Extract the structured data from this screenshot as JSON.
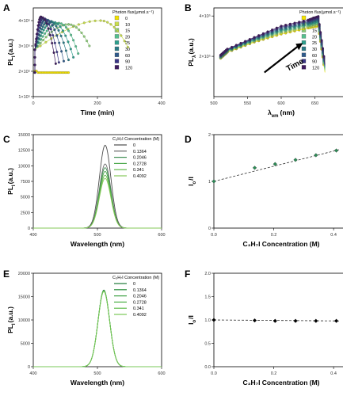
{
  "panels": [
    {
      "letter": "A",
      "chart_data": {
        "type": "scatter",
        "xlabel": "Time (min)",
        "ylabel": "PL",
        "ylabel_sub": "I",
        "ylabel_unit": "(a.u.)",
        "xlim": [
          0,
          400
        ],
        "ylim": [
          1000,
          4500
        ],
        "x_ticks": [
          0,
          200,
          400
        ],
        "y_ticks": [
          {
            "v": 1000,
            "t": "1×10⁵"
          },
          {
            "v": 2000,
            "t": "2×10⁵"
          },
          {
            "v": 3000,
            "t": "3×10⁵"
          },
          {
            "v": 4000,
            "t": "4×10⁵"
          }
        ],
        "legend_title": "Photon flux(μmol.s⁻¹)",
        "legend_placement": "top-right",
        "series": [
          {
            "name": "0",
            "color": "#f2e100",
            "x": [
              5,
              110
            ],
            "y": [
              1950,
              1950
            ],
            "shape": "flat"
          },
          {
            "name": "10",
            "color": "#c8dd4a",
            "x": [
              5,
              210,
              295
            ],
            "y": [
              1950,
              4000,
              2950
            ],
            "shape": "rise"
          },
          {
            "name": "15",
            "color": "#8fd07a",
            "x": [
              5,
              110,
              175
            ],
            "y": [
              1950,
              3850,
              3000
            ],
            "shape": "rise"
          },
          {
            "name": "20",
            "color": "#55bf8e",
            "x": [
              5,
              80,
              140
            ],
            "y": [
              1950,
              3900,
              2700
            ],
            "shape": "rise"
          },
          {
            "name": "25",
            "color": "#2e9e8c",
            "x": [
              5,
              60,
              125
            ],
            "y": [
              1950,
              3950,
              2550
            ],
            "shape": "rise"
          },
          {
            "name": "30",
            "color": "#2a7a86",
            "x": [
              5,
              48,
              110
            ],
            "y": [
              1950,
              4000,
              2450
            ],
            "shape": "rise"
          },
          {
            "name": "60",
            "color": "#2f5a8a",
            "x": [
              5,
              38,
              95
            ],
            "y": [
              1950,
              4050,
              2400
            ],
            "shape": "rise"
          },
          {
            "name": "90",
            "color": "#3a3585",
            "x": [
              5,
              30,
              80
            ],
            "y": [
              1950,
              4100,
              2350
            ],
            "shape": "rise"
          },
          {
            "name": "120",
            "color": "#3d1a5e",
            "x": [
              5,
              24,
              70
            ],
            "y": [
              1950,
              4150,
              2300
            ],
            "shape": "rise"
          }
        ]
      }
    },
    {
      "letter": "B",
      "chart_data": {
        "type": "scatter",
        "xlabel": "λ",
        "xlabel_sub": "em",
        "xlabel_unit": "(nm)",
        "ylabel": "PL",
        "ylabel_sub": "λ",
        "ylabel_unit": "(a.u.)",
        "xlim": [
          500,
          700
        ],
        "ylim": [
          0,
          4400
        ],
        "x_ticks": [
          500,
          550,
          600,
          650,
          700
        ],
        "y_ticks": [
          {
            "v": 2000,
            "t": "2×10⁵"
          },
          {
            "v": 4000,
            "t": "4×10⁵"
          }
        ],
        "legend_title": "Photon flux(μmol.s⁻¹)",
        "legend_placement": "top-right",
        "annotation": "Time",
        "series": [
          {
            "name": "0",
            "color": "#f2e100",
            "x": [
              510,
              520,
              560,
              600,
              640,
              655,
              665
            ],
            "y": [
              1900,
              2200,
              2700,
              3100,
              3400,
              3500,
              1200
            ]
          },
          {
            "name": "10",
            "color": "#c8dd4a",
            "x": [
              510,
              520,
              560,
              600,
              640,
              655,
              665
            ],
            "y": [
              1920,
              2220,
              2730,
              3150,
              3450,
              3560,
              1250
            ]
          },
          {
            "name": "15",
            "color": "#8fd07a",
            "x": [
              510,
              520,
              560,
              600,
              640,
              655,
              665
            ],
            "y": [
              1940,
              2240,
              2760,
              3200,
              3500,
              3620,
              1300
            ]
          },
          {
            "name": "20",
            "color": "#55bf8e",
            "x": [
              510,
              520,
              560,
              600,
              640,
              655,
              665
            ],
            "y": [
              1960,
              2260,
              2790,
              3250,
              3550,
              3680,
              1350
            ]
          },
          {
            "name": "25",
            "color": "#2e9e8c",
            "x": [
              510,
              520,
              560,
              600,
              640,
              655,
              665
            ],
            "y": [
              1980,
              2280,
              2820,
              3300,
              3600,
              3740,
              1400
            ]
          },
          {
            "name": "30",
            "color": "#2a7a86",
            "x": [
              510,
              520,
              560,
              600,
              640,
              655,
              665
            ],
            "y": [
              2000,
              2300,
              2850,
              3350,
              3650,
              3800,
              1450
            ]
          },
          {
            "name": "60",
            "color": "#2f5a8a",
            "x": [
              510,
              520,
              560,
              600,
              640,
              655,
              665
            ],
            "y": [
              2020,
              2320,
              2880,
              3400,
              3700,
              3860,
              1500
            ]
          },
          {
            "name": "90",
            "color": "#3a3585",
            "x": [
              510,
              520,
              560,
              600,
              640,
              655,
              665
            ],
            "y": [
              2040,
              2340,
              2910,
              3450,
              3750,
              3920,
              1550
            ]
          },
          {
            "name": "120",
            "color": "#3d1a5e",
            "x": [
              510,
              520,
              560,
              600,
              640,
              655,
              665
            ],
            "y": [
              2060,
              2360,
              2940,
              3500,
              3800,
              3980,
              1600
            ]
          }
        ]
      }
    },
    {
      "letter": "C",
      "chart_data": {
        "type": "line",
        "xlabel": "Wavelength (nm)",
        "ylabel": "PL",
        "ylabel_sub": "I",
        "ylabel_unit": "(a.u.)",
        "xlim": [
          400,
          600
        ],
        "ylim": [
          0,
          15000
        ],
        "x_ticks": [
          400,
          500,
          600
        ],
        "y_ticks": [
          {
            "v": 0,
            "t": "0"
          },
          {
            "v": 2500,
            "t": "2500"
          },
          {
            "v": 5000,
            "t": "5000"
          },
          {
            "v": 7500,
            "t": "7500"
          },
          {
            "v": 10000,
            "t": "10000"
          },
          {
            "v": 12500,
            "t": "12500"
          },
          {
            "v": 15000,
            "t": "15000"
          }
        ],
        "legend_title": "C₃H₇I Concentration (M)",
        "legend_placement": "top-right",
        "peak_center": 512,
        "peak_sigma": 9,
        "series": [
          {
            "name": "0",
            "color": "#4d4d4d",
            "peak": 13300
          },
          {
            "name": "0.1364",
            "color": "#6b6b6b",
            "peak": 10300
          },
          {
            "name": "0.2046",
            "color": "#3e8f52",
            "peak": 9700
          },
          {
            "name": "0.2728",
            "color": "#4aa84a",
            "peak": 9100
          },
          {
            "name": "0.341",
            "color": "#63b94c",
            "peak": 8500
          },
          {
            "name": "0.4092",
            "color": "#86c85a",
            "peak": 8000
          }
        ]
      }
    },
    {
      "letter": "D",
      "chart_data": {
        "type": "scatter",
        "xlabel": "C₃H₇I Concentration (M)",
        "ylabel": "I",
        "ylabel_sub": "o",
        "ylabel_unit": "/I",
        "xlim": [
          0,
          0.45
        ],
        "ylim": [
          0,
          2
        ],
        "x_ticks": [
          0.0,
          0.2,
          0.4
        ],
        "x_tick_labels": [
          "0.0",
          "0.2",
          "0.4"
        ],
        "y_ticks": [
          {
            "v": 0,
            "t": "0"
          },
          {
            "v": 1,
            "t": "1"
          },
          {
            "v": 2,
            "t": "2"
          }
        ],
        "marker_color": "#2e8b57",
        "fit": {
          "intercept": 1.0,
          "slope": 1.62
        },
        "x": [
          0,
          0.1364,
          0.2046,
          0.2728,
          0.341,
          0.4092
        ],
        "y": [
          1.0,
          1.29,
          1.37,
          1.46,
          1.56,
          1.66
        ]
      }
    },
    {
      "letter": "E",
      "chart_data": {
        "type": "line",
        "xlabel": "Wavelength (nm)",
        "ylabel": "PL",
        "ylabel_sub": "I",
        "ylabel_unit": "(a.u.)",
        "xlim": [
          400,
          600
        ],
        "ylim": [
          0,
          20000
        ],
        "x_ticks": [
          400,
          500,
          600
        ],
        "y_ticks": [
          {
            "v": 0,
            "t": "0"
          },
          {
            "v": 5000,
            "t": "5000"
          },
          {
            "v": 10000,
            "t": "10000"
          },
          {
            "v": 15000,
            "t": "15000"
          },
          {
            "v": 20000,
            "t": "20000"
          }
        ],
        "legend_title": "C₃H₇I Concentration (M)",
        "legend_placement": "top-right",
        "peak_center": 510,
        "peak_sigma": 9,
        "series": [
          {
            "name": "0",
            "color": "#1f7a3a",
            "peak": 16400
          },
          {
            "name": "0.1364",
            "color": "#2b8f3e",
            "peak": 16300
          },
          {
            "name": "0.2046",
            "color": "#3a9f42",
            "peak": 16250
          },
          {
            "name": "0.2728",
            "color": "#4caf47",
            "peak": 16200
          },
          {
            "name": "0.341",
            "color": "#62bd4f",
            "peak": 16150
          },
          {
            "name": "0.4092",
            "color": "#7ac858",
            "peak": 16100
          }
        ]
      }
    },
    {
      "letter": "F",
      "chart_data": {
        "type": "scatter",
        "xlabel": "C₃H₇I Concentration (M)",
        "ylabel": "I",
        "ylabel_sub": "o",
        "ylabel_unit": "/I",
        "xlim": [
          0,
          0.45
        ],
        "ylim": [
          0,
          2
        ],
        "x_ticks": [
          0.0,
          0.2,
          0.4
        ],
        "x_tick_labels": [
          "0.0",
          "0.2",
          "0.4"
        ],
        "y_ticks": [
          {
            "v": 0,
            "t": "0.0"
          },
          {
            "v": 0.5,
            "t": "0.5"
          },
          {
            "v": 1.0,
            "t": "1.0"
          },
          {
            "v": 1.5,
            "t": "1.5"
          },
          {
            "v": 2.0,
            "t": "2.0"
          }
        ],
        "marker_color": "#000000",
        "fit": {
          "intercept": 1.0,
          "slope": -0.05
        },
        "x": [
          0,
          0.1364,
          0.2046,
          0.2728,
          0.341,
          0.4092
        ],
        "y": [
          1.0,
          0.99,
          0.98,
          0.98,
          0.98,
          0.98
        ]
      }
    }
  ]
}
